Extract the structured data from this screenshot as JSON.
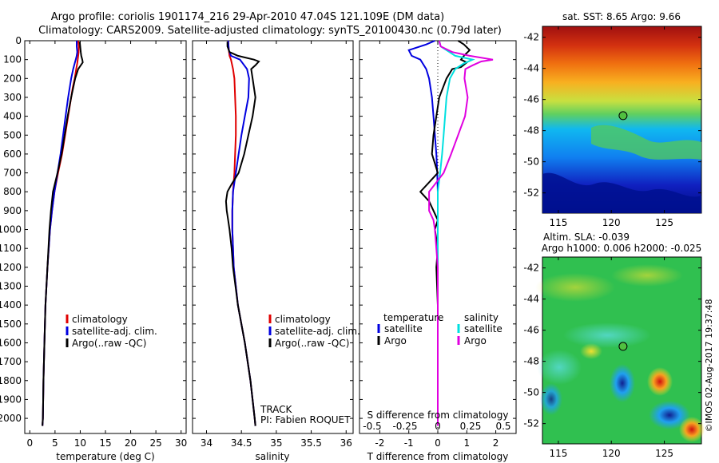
{
  "figure": {
    "title_line1": "Argo profile: coriolis 1901174_216 29-Apr-2010 47.04S 121.109E (DM data)",
    "title_line2": "Climatology: CARS2009. Satellite-adjusted climatology: synTS_20100430.nc (0.79d later)",
    "credit": "©IMOS 02-Aug-2017 19:37:48",
    "track_label": "TRACK",
    "pi_label": "PI: Fabien ROQUET"
  },
  "colors": {
    "climatology": "#e00000",
    "satellite": "#0000e0",
    "argo": "#000000",
    "sal_satellite": "#00e0e0",
    "sal_argo": "#e000e0"
  },
  "chart_data": [
    {
      "type": "line",
      "id": "temperature",
      "xlabel": "temperature (deg C)",
      "ylabel": "",
      "xlim": [
        -1,
        31
      ],
      "ylim": [
        2080,
        0
      ],
      "xticks": [
        0,
        5,
        10,
        15,
        20,
        25,
        30
      ],
      "yticks": [
        0,
        100,
        200,
        300,
        400,
        500,
        600,
        700,
        800,
        900,
        1000,
        1100,
        1200,
        1300,
        1400,
        1500,
        1600,
        1700,
        1800,
        1900,
        2000
      ],
      "legend": [
        "climatology",
        "satellite-adj. clim.",
        "Argo(..raw -QC)"
      ],
      "legend_placement": "center-right",
      "series": [
        {
          "name": "climatology",
          "color": "#e00000",
          "y": [
            0,
            30,
            60,
            80,
            100,
            120,
            150,
            200,
            250,
            300,
            400,
            500,
            600,
            700,
            800,
            900,
            1000,
            1200,
            1400,
            1600,
            1800,
            2000,
            2040
          ],
          "x": [
            9.6,
            9.7,
            9.7,
            9.6,
            9.5,
            9.4,
            9.2,
            8.9,
            8.5,
            8.2,
            7.6,
            7.0,
            6.4,
            5.6,
            4.9,
            4.4,
            4.0,
            3.5,
            3.1,
            2.9,
            2.7,
            2.6,
            2.5
          ]
        },
        {
          "name": "satellite-adj. clim.",
          "color": "#0000e0",
          "y": [
            0,
            30,
            60,
            80,
            100,
            120,
            150,
            200,
            250,
            300,
            400,
            500,
            600,
            700,
            800,
            900,
            1000,
            1200,
            1400,
            1600,
            1800,
            2000,
            2040
          ],
          "x": [
            9.3,
            9.3,
            9.4,
            9.3,
            9.1,
            8.9,
            8.6,
            8.2,
            7.9,
            7.6,
            7.1,
            6.6,
            6.1,
            5.5,
            4.9,
            4.4,
            4.0,
            3.5,
            3.1,
            2.9,
            2.7,
            2.6,
            2.5
          ]
        },
        {
          "name": "Argo(..raw -QC)",
          "color": "#000000",
          "y": [
            5,
            30,
            60,
            80,
            100,
            115,
            130,
            150,
            200,
            250,
            300,
            400,
            500,
            600,
            700,
            800,
            900,
            1000,
            1200,
            1400,
            1600,
            1800,
            2000,
            2040
          ],
          "x": [
            9.9,
            10.0,
            10.1,
            10.2,
            10.4,
            10.5,
            10.1,
            9.6,
            9.0,
            8.6,
            8.2,
            7.5,
            6.9,
            6.3,
            5.5,
            4.6,
            4.2,
            3.9,
            3.5,
            3.1,
            2.9,
            2.7,
            2.6,
            2.5
          ]
        }
      ]
    },
    {
      "type": "line",
      "id": "salinity",
      "xlabel": "salinity",
      "ylabel": "",
      "xlim": [
        33.8,
        36.1
      ],
      "ylim": [
        2080,
        0
      ],
      "xticks": [
        34,
        34.5,
        35,
        35.5,
        36
      ],
      "legend": [
        "climatology",
        "satellite-adj. clim.",
        "Argo(..raw -QC)"
      ],
      "legend_placement": "center-right",
      "series": [
        {
          "name": "climatology",
          "color": "#e00000",
          "y": [
            0,
            50,
            80,
            100,
            150,
            200,
            300,
            400,
            500,
            600,
            700,
            800,
            900,
            1000,
            1200,
            1400,
            1600,
            1800,
            2000,
            2040
          ],
          "x": [
            34.31,
            34.32,
            34.33,
            34.35,
            34.38,
            34.4,
            34.41,
            34.42,
            34.42,
            34.41,
            34.4,
            34.38,
            34.37,
            34.37,
            34.39,
            34.45,
            34.55,
            34.63,
            34.69,
            34.7
          ]
        },
        {
          "name": "satellite-adj. clim.",
          "color": "#0000e0",
          "y": [
            0,
            50,
            80,
            100,
            150,
            200,
            300,
            400,
            500,
            600,
            700,
            800,
            900,
            1000,
            1200,
            1400,
            1600,
            1800,
            2000,
            2040
          ],
          "x": [
            34.31,
            34.32,
            34.35,
            34.48,
            34.58,
            34.61,
            34.6,
            34.55,
            34.5,
            34.46,
            34.42,
            34.38,
            34.37,
            34.37,
            34.39,
            34.45,
            34.55,
            34.63,
            34.69,
            34.7
          ]
        },
        {
          "name": "Argo(..raw -QC)",
          "color": "#000000",
          "y": [
            5,
            30,
            60,
            80,
            100,
            110,
            130,
            150,
            200,
            300,
            400,
            500,
            600,
            700,
            760,
            800,
            850,
            900,
            950,
            1000,
            1100,
            1200,
            1400,
            1600,
            1800,
            2000,
            2040
          ],
          "x": [
            34.3,
            34.3,
            34.33,
            34.45,
            34.68,
            34.75,
            34.7,
            34.64,
            34.66,
            34.7,
            34.66,
            34.6,
            34.54,
            34.46,
            34.36,
            34.3,
            34.28,
            34.29,
            34.31,
            34.33,
            34.36,
            34.38,
            34.45,
            34.55,
            34.63,
            34.69,
            34.7
          ]
        }
      ]
    },
    {
      "type": "line",
      "id": "difference",
      "xlabel": "T difference from climatology",
      "ylabel": "",
      "top_xlabel": "S difference from climatology",
      "xlim": [
        -2.7,
        2.7
      ],
      "ylim": [
        2080,
        0
      ],
      "xticks": [
        -2,
        -1,
        0,
        1,
        2
      ],
      "top_xticks": [
        "-0.5",
        "-0.25",
        "0",
        "0.25",
        "0.5"
      ],
      "legend_temperature_title": "temperature",
      "legend_salinity_title": "salinity",
      "legend": [
        "satellite",
        "Argo",
        "satellite",
        "Argo"
      ],
      "legend_placement": "center",
      "series": [
        {
          "name": "satellite",
          "group": "temperature",
          "color": "#0000e0",
          "y": [
            0,
            20,
            50,
            80,
            100,
            150,
            200,
            250,
            300,
            400,
            500,
            600,
            700,
            800,
            900,
            1000,
            1200,
            1400,
            1600,
            1800,
            2000,
            2040
          ],
          "x": [
            -0.1,
            -0.4,
            -1.0,
            -0.9,
            -0.6,
            -0.4,
            -0.3,
            -0.25,
            -0.2,
            -0.15,
            -0.1,
            -0.05,
            -0.02,
            0,
            0,
            0,
            0,
            0,
            0,
            0,
            0,
            0
          ]
        },
        {
          "name": "Argo",
          "group": "temperature",
          "color": "#000000",
          "y": [
            0,
            20,
            50,
            80,
            100,
            115,
            140,
            150,
            200,
            300,
            400,
            500,
            600,
            650,
            700,
            750,
            800,
            850,
            900,
            950,
            1000,
            1100,
            1200,
            1400,
            1600,
            1800,
            2000,
            2040
          ],
          "x": [
            0.7,
            0.9,
            1.1,
            0.9,
            0.8,
            1.0,
            0.8,
            0.5,
            0.3,
            0.05,
            -0.05,
            -0.15,
            -0.2,
            -0.1,
            0.0,
            -0.3,
            -0.6,
            -0.3,
            -0.15,
            0.0,
            -0.1,
            0.0,
            -0.05,
            0.0,
            0.0,
            0.0,
            0.0,
            0.0
          ]
        },
        {
          "name": "satellite",
          "group": "salinity",
          "color": "#00e0e0",
          "y": [
            0,
            30,
            60,
            80,
            100,
            120,
            150,
            200,
            300,
            400,
            500,
            600,
            700,
            800,
            900,
            1000,
            1200,
            1400,
            1600,
            1800,
            2000,
            2040
          ],
          "x": [
            0.05,
            0.1,
            0.4,
            0.6,
            1.2,
            0.9,
            0.6,
            0.42,
            0.3,
            0.25,
            0.2,
            0.15,
            0.08,
            0.0,
            0.0,
            0.0,
            0.0,
            0.0,
            0.0,
            0.0,
            0.0,
            0.0
          ]
        },
        {
          "name": "Argo",
          "group": "salinity",
          "color": "#e000e0",
          "y": [
            0,
            30,
            60,
            80,
            100,
            110,
            130,
            150,
            200,
            300,
            400,
            500,
            600,
            700,
            760,
            800,
            850,
            900,
            950,
            1000,
            1100,
            1200,
            1400,
            1600,
            1800,
            2000,
            2040
          ],
          "x": [
            0.05,
            0.1,
            0.5,
            1.1,
            1.9,
            1.5,
            1.2,
            0.95,
            0.92,
            1.03,
            0.94,
            0.7,
            0.46,
            0.2,
            -0.1,
            -0.3,
            -0.3,
            -0.3,
            -0.15,
            -0.1,
            -0.05,
            0.0,
            0.0,
            0.0,
            0.0,
            0.0,
            0.0
          ]
        }
      ]
    },
    {
      "type": "heatmap",
      "id": "sst_map",
      "title": "sat. SST: 8.65 Argo: 9.66",
      "xlim": [
        113.5,
        128.5
      ],
      "ylim": [
        -53.3,
        -41.3
      ],
      "xticks": [
        115,
        120,
        125
      ],
      "yticks": [
        -42,
        -44,
        -46,
        -48,
        -50,
        -52
      ],
      "marker": {
        "lon": 121.109,
        "lat": -47.04
      }
    },
    {
      "type": "heatmap",
      "id": "sla_map",
      "title": "Altim. SLA: -0.039",
      "subtitle": "Argo h1000: 0.006 h2000: -0.025",
      "xlim": [
        113.5,
        128.5
      ],
      "ylim": [
        -53.3,
        -41.3
      ],
      "xticks": [
        115,
        120,
        125
      ],
      "yticks": [
        -42,
        -44,
        -46,
        -48,
        -50,
        -52
      ],
      "marker": {
        "lon": 121.109,
        "lat": -47.04
      }
    }
  ]
}
